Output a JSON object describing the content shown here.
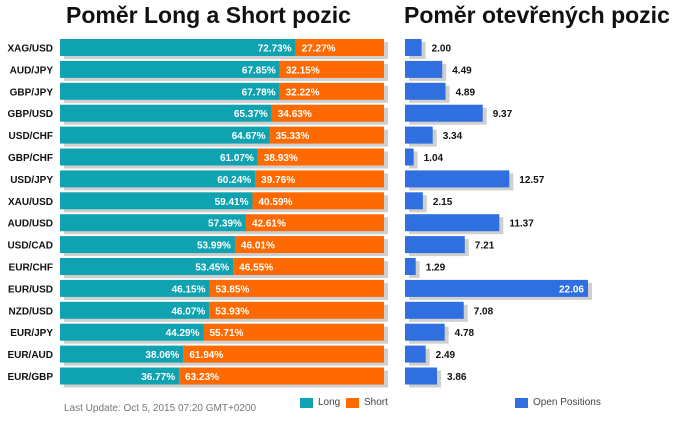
{
  "titles": {
    "left": "Poměr Long a Short pozic",
    "right": "Poměr otevřených pozic"
  },
  "footer": {
    "last_update": "Last Update: Oct 5, 2015 07:20 GMT+0200"
  },
  "legend": {
    "long": "Long",
    "short": "Short",
    "open": "Open Positions"
  },
  "colors": {
    "long": "#0fa3b1",
    "short": "#ff6a00",
    "open": "#2f6fe0",
    "shadow": "#cfcfcf"
  },
  "chart_data": [
    {
      "type": "bar",
      "title": "Poměr Long a Short pozic",
      "orientation": "horizontal",
      "stacked": "percent",
      "categories": [
        "XAG/USD",
        "AUD/JPY",
        "GBP/JPY",
        "GBP/USD",
        "USD/CHF",
        "GBP/CHF",
        "USD/JPY",
        "XAU/USD",
        "AUD/USD",
        "USD/CAD",
        "EUR/CHF",
        "EUR/USD",
        "NZD/USD",
        "EUR/JPY",
        "EUR/AUD",
        "EUR/GBP"
      ],
      "series": [
        {
          "name": "Long",
          "values": [
            72.73,
            67.85,
            67.78,
            65.37,
            64.67,
            61.07,
            60.24,
            59.41,
            57.39,
            53.99,
            53.45,
            46.15,
            46.07,
            44.29,
            38.06,
            36.77
          ]
        },
        {
          "name": "Short",
          "values": [
            27.27,
            32.15,
            32.22,
            34.63,
            35.33,
            38.93,
            39.76,
            40.59,
            42.61,
            46.01,
            46.55,
            53.85,
            53.93,
            55.71,
            61.94,
            63.23
          ]
        }
      ],
      "legend": "bottom",
      "grid": false
    },
    {
      "type": "bar",
      "title": "Poměr otevřených pozic",
      "orientation": "horizontal",
      "categories": [
        "XAG/USD",
        "AUD/JPY",
        "GBP/JPY",
        "GBP/USD",
        "USD/CHF",
        "GBP/CHF",
        "USD/JPY",
        "XAU/USD",
        "AUD/USD",
        "USD/CAD",
        "EUR/CHF",
        "EUR/USD",
        "NZD/USD",
        "EUR/JPY",
        "EUR/AUD",
        "EUR/GBP"
      ],
      "series": [
        {
          "name": "Open Positions",
          "values": [
            2.0,
            4.49,
            4.89,
            9.37,
            3.34,
            1.04,
            12.57,
            2.15,
            11.37,
            7.21,
            1.29,
            22.06,
            7.08,
            4.78,
            2.49,
            3.86
          ]
        }
      ],
      "xlim": [
        0,
        22.06
      ],
      "legend": "bottom",
      "grid": false
    }
  ]
}
